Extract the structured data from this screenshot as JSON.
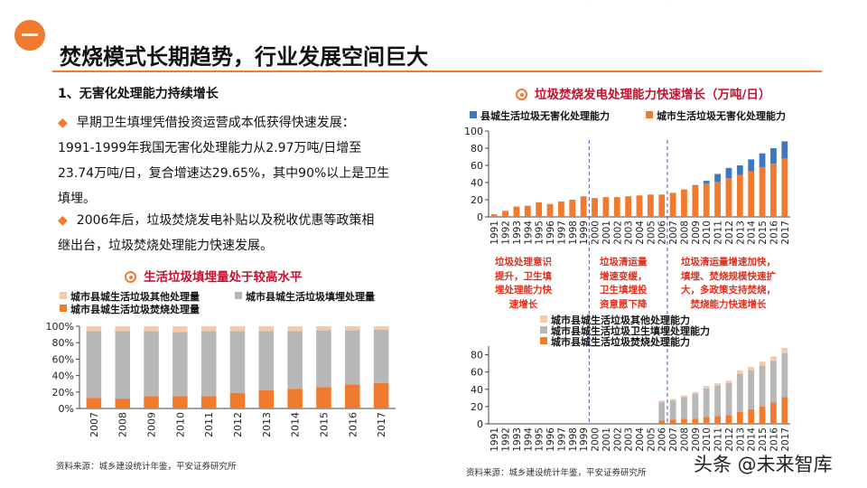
{
  "header": {
    "title": "焚烧模式长期趋势，行业发展空间巨大"
  },
  "text": {
    "heading": "1、无害化处理能力持续增长",
    "bullet1_l1": "早期卫生填埋凭借投资运营成本低获得快速发展：",
    "bullet1_l2": "1991-1999年我国无害化处理能力从2.97万吨/日增至",
    "bullet1_l3": "23.74万吨/日，复合增速达29.65%，其中90%以上是卫生",
    "bullet1_l4": "填埋。",
    "bullet2_l1": "2006年后，垃圾焚烧发电补贴以及税收优惠等政策相",
    "bullet2_l2": "继出台，垃圾焚烧处理能力快速发展。"
  },
  "charts": {
    "landfill": {
      "title": "生活垃圾填埋量处于较高水平",
      "source": "资料来源：城乡建设统计年鉴，平安证券研究所"
    },
    "top_right": {
      "title": "垃圾焚烧发电处理能力快速增长（万吨/日）",
      "notes": [
        [
          "垃圾处理意识",
          "提升，卫生填",
          "埋处理能力快",
          "速增长"
        ],
        [
          "垃圾清运量",
          "增速变缓，",
          "卫生填埋投",
          "资意愿下降"
        ],
        [
          "垃圾清运量增速加快，",
          "填埋、焚烧规模快速扩",
          "大，多政策支持焚烧，",
          "焚烧能力快速增长"
        ]
      ]
    },
    "bottom_right": {
      "source": "资料来源：城乡建设统计年鉴，平安证券研究所"
    }
  },
  "watermark": "头条 @未来智库",
  "colors": {
    "accent": "#f07b2e",
    "gray": "#b7b7b7",
    "light": "#f6c9a8",
    "blue": "#3f77bd",
    "note_red": "#e0301e",
    "divider": "#5a4fb5"
  },
  "chart_data": [
    {
      "type": "bar",
      "stacked": true,
      "title": "生活垃圾填埋量处于较高水平",
      "categories": [
        "2007",
        "2008",
        "2009",
        "2010",
        "2011",
        "2012",
        "2013",
        "2014",
        "2015",
        "2016",
        "2017"
      ],
      "series": [
        {
          "name": "城市县城生活垃圾焚烧处理量",
          "values": [
            13,
            12,
            15,
            15,
            15,
            19,
            22,
            24,
            26,
            29,
            31
          ]
        },
        {
          "name": "城市县城生活垃圾填埋处理量",
          "values": [
            81,
            82,
            79,
            78,
            79,
            75,
            72,
            70,
            69,
            66,
            65
          ]
        },
        {
          "name": "城市县城生活垃圾其他处理量",
          "values": [
            6,
            6,
            6,
            7,
            6,
            6,
            6,
            6,
            5,
            5,
            4
          ]
        }
      ],
      "legend": [
        "城市县城生活垃圾其他处理量",
        "城市县城生活垃圾填埋处理量",
        "城市县城生活垃圾焚烧处理量"
      ],
      "yticks": [
        "0%",
        "20%",
        "40%",
        "60%",
        "80%",
        "100%"
      ],
      "ylim": [
        0,
        100
      ],
      "legend_position": "top"
    },
    {
      "type": "bar",
      "stacked": true,
      "title": "垃圾焚烧发电处理能力快速增长（万吨/日）",
      "categories": [
        "1991",
        "1992",
        "1993",
        "1994",
        "1995",
        "1996",
        "1997",
        "1998",
        "1999",
        "2000",
        "2001",
        "2002",
        "2003",
        "2004",
        "2005",
        "2006",
        "2007",
        "2008",
        "2009",
        "2010",
        "2011",
        "2012",
        "2013",
        "2014",
        "2015",
        "2016",
        "2017"
      ],
      "series": [
        {
          "name": "城市生活垃圾无害化处理能力",
          "values": [
            3,
            7,
            12,
            13,
            17,
            15,
            18,
            20,
            24,
            22,
            23,
            23,
            24,
            25,
            26,
            26,
            28,
            32,
            36,
            39,
            41,
            45,
            49,
            53,
            58,
            62,
            68
          ]
        },
        {
          "name": "县城生活垃圾无害化处理能力",
          "values": [
            0,
            0,
            0,
            0,
            0,
            0,
            0,
            0,
            0,
            0,
            0,
            0,
            0,
            0,
            0,
            0,
            0,
            0,
            1,
            3,
            9,
            12,
            11,
            14,
            16,
            18,
            20
          ]
        }
      ],
      "legend": [
        "县城生活垃圾无害化处理能力",
        "城市生活垃圾无害化处理能力"
      ],
      "yticks": [
        "0",
        "20",
        "40",
        "60",
        "80",
        "100"
      ],
      "ylim": [
        0,
        100
      ],
      "dividers_after": [
        "1999",
        "2006"
      ],
      "legend_position": "top"
    },
    {
      "type": "bar",
      "stacked": true,
      "categories": [
        "1991",
        "1992",
        "1993",
        "1994",
        "1995",
        "1996",
        "1997",
        "1998",
        "1999",
        "2000",
        "2001",
        "2002",
        "2003",
        "2004",
        "2005",
        "2006",
        "2007",
        "2008",
        "2009",
        "2010",
        "2011",
        "2012",
        "2013",
        "2014",
        "2015",
        "2016",
        "2017"
      ],
      "series": [
        {
          "name": "城市县城生活垃圾焚烧处理能力",
          "values": [
            0,
            0,
            0,
            0,
            0,
            0,
            0,
            0,
            0,
            0,
            0,
            0,
            0,
            0,
            0,
            4,
            5,
            6,
            6,
            8,
            9,
            10,
            14,
            17,
            20,
            25,
            31
          ]
        },
        {
          "name": "城市县城生活垃圾卫生填埋处理能力",
          "values": [
            0,
            0,
            0,
            0,
            0,
            0,
            0,
            0,
            0,
            0,
            0,
            0,
            0,
            0,
            0,
            21,
            22,
            25,
            29,
            33,
            35,
            37,
            44,
            45,
            47,
            48,
            51
          ]
        },
        {
          "name": "城市县城生活垃圾其他处理能力",
          "values": [
            0,
            0,
            0,
            0,
            0,
            0,
            0,
            0,
            0,
            0,
            0,
            0,
            0,
            0,
            0,
            2,
            2,
            2,
            2,
            3,
            3,
            3,
            4,
            4,
            5,
            5,
            6
          ]
        }
      ],
      "legend": [
        "城市县城生活垃圾其他处理能力",
        "城市县城生活垃圾卫生填埋处理能力",
        "城市县城生活垃圾焚烧处理能力"
      ],
      "yticks": [
        "0",
        "20",
        "40",
        "60",
        "80"
      ],
      "ylim": [
        0,
        90
      ],
      "dividers_after": [
        "1999",
        "2006"
      ],
      "legend_position": "top"
    }
  ]
}
